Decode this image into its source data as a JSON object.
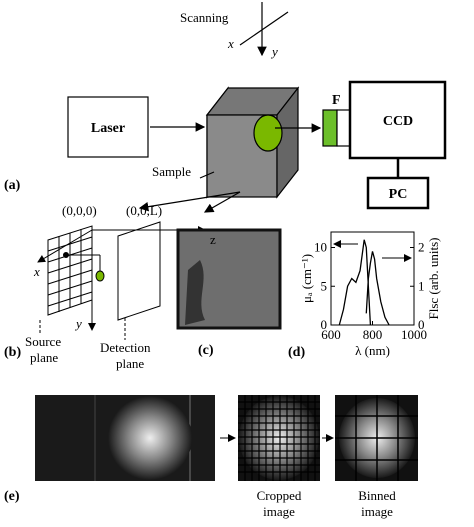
{
  "panel_a": {
    "label": "(a)",
    "scanning": "Scanning",
    "scan_x": "x",
    "scan_y": "y",
    "laser": "Laser",
    "sample": "Sample",
    "filter": "F",
    "ccd": "CCD",
    "pc": "PC"
  },
  "panel_b": {
    "label": "(b)",
    "origin": "(0,0,0)",
    "end": "(0,0,L)",
    "z_axis": "z",
    "x_axis": "x",
    "y_axis": "y",
    "source_plane": [
      "Source",
      "plane"
    ],
    "detection_plane": [
      "Detection",
      "plane"
    ]
  },
  "panel_c": {
    "label": "(c)"
  },
  "panel_d": {
    "label": "(d)",
    "chart": {
      "type": "line",
      "x_label": "λ (nm)",
      "y_label": "μₐ (cm⁻¹)",
      "y2_label": "Flsc (arb. units)",
      "xlim": [
        600,
        1000
      ],
      "xticks": [
        600,
        800,
        1000
      ],
      "ylim": [
        0,
        12
      ],
      "yticks": [
        0,
        5,
        10
      ],
      "y2lim": [
        0,
        2.4
      ],
      "y2ticks": [
        0,
        1,
        2
      ],
      "series": [
        {
          "color": "#000000",
          "x": [
            640,
            660,
            680,
            700,
            720,
            740,
            750,
            760,
            770,
            780,
            790
          ],
          "values": [
            0,
            2,
            5,
            6,
            5.5,
            7,
            9,
            11,
            10,
            5,
            0
          ]
        },
        {
          "color": "#000000",
          "axis": "y2",
          "x": [
            770,
            780,
            790,
            800,
            810,
            820,
            840,
            860,
            880
          ],
          "values": [
            0.3,
            1.2,
            1.6,
            1.9,
            1.7,
            1.2,
            0.6,
            0.2,
            0
          ]
        }
      ]
    }
  },
  "panel_e": {
    "label": "(e)",
    "cropped": [
      "Cropped",
      "image"
    ],
    "binned": [
      "Binned",
      "image"
    ]
  }
}
